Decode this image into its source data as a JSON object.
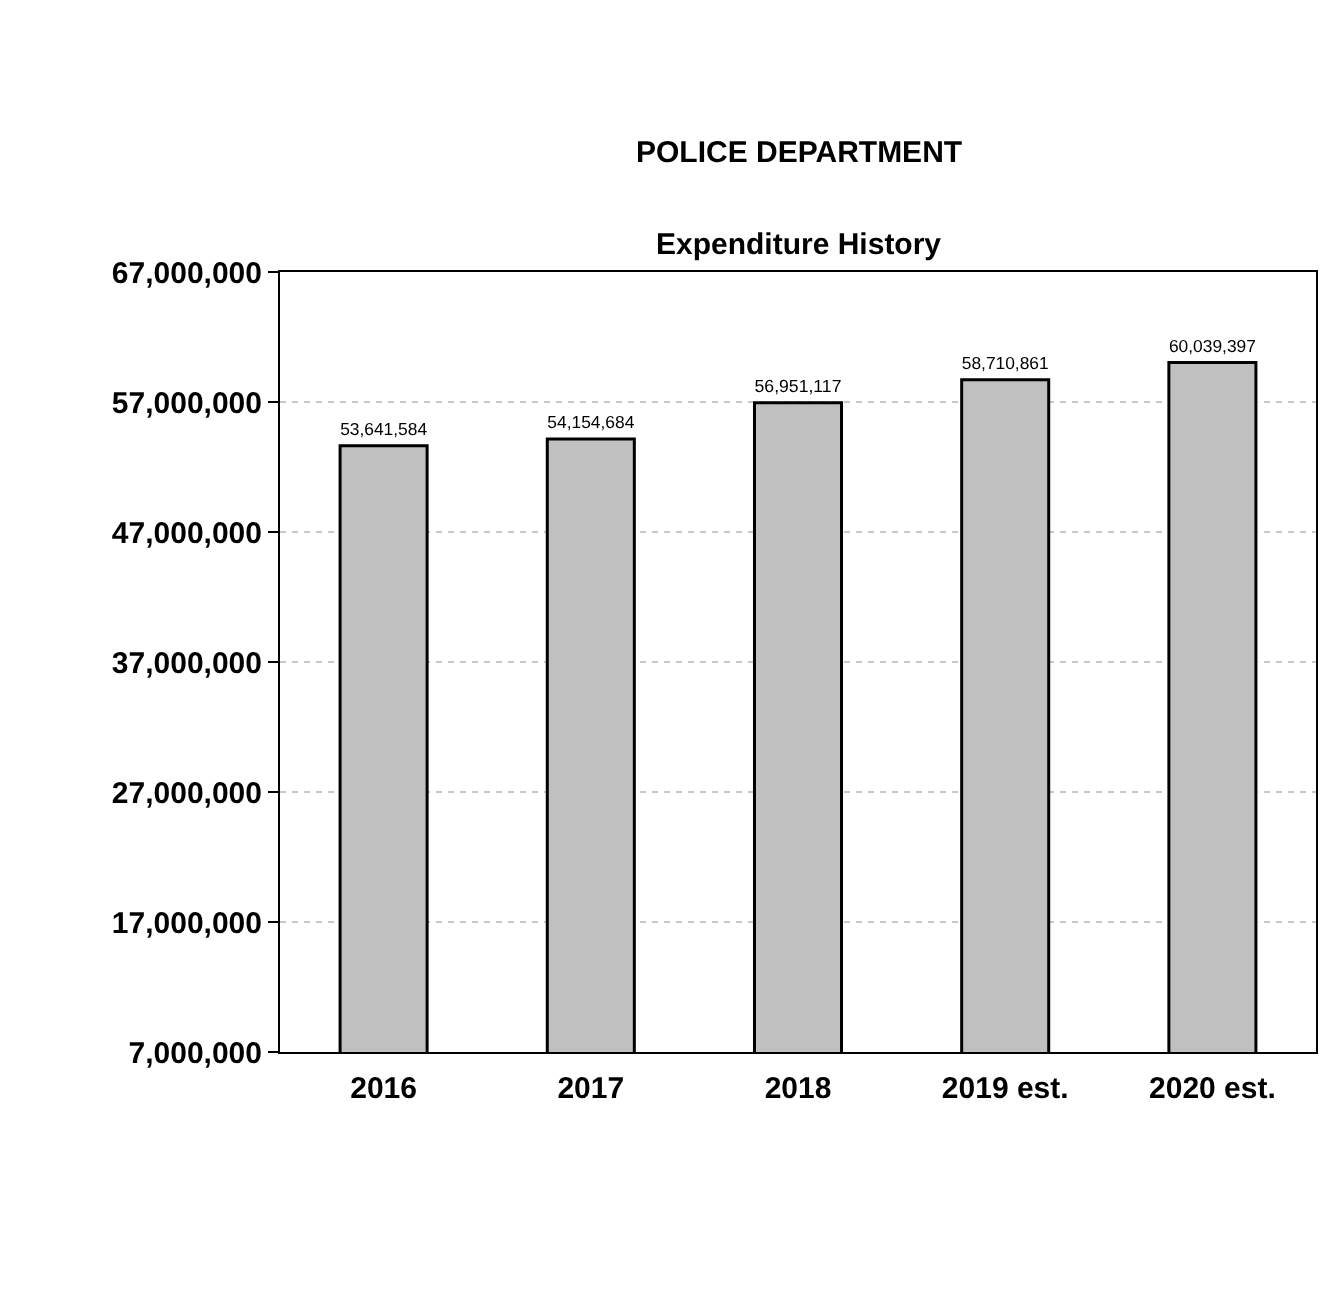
{
  "chart_data": {
    "type": "bar",
    "title": "POLICE DEPARTMENT",
    "subtitle": "Expenditure History",
    "categories": [
      "2016",
      "2017",
      "2018",
      "2019 est.",
      "2020 est."
    ],
    "values": [
      53641584,
      54154684,
      56951117,
      58710861,
      60039397
    ],
    "color": "#c0c0c0",
    "ylim": [
      7000000,
      67000000
    ],
    "yticks": [
      {
        "value": 7000000,
        "label": "7,000,000"
      },
      {
        "value": 17000000,
        "label": "17,000,000"
      },
      {
        "value": 27000000,
        "label": "27,000,000"
      },
      {
        "value": 37000000,
        "label": "37,000,000"
      },
      {
        "value": 47000000,
        "label": "47,000,000"
      },
      {
        "value": 57000000,
        "label": "57,000,000"
      },
      {
        "value": 67000000,
        "label": "67,000,000"
      }
    ],
    "value_labels": [
      "53,641,584",
      "54,154,684",
      "56,951,117",
      "58,710,861",
      "60,039,397"
    ],
    "grid": "y",
    "legend": false
  }
}
